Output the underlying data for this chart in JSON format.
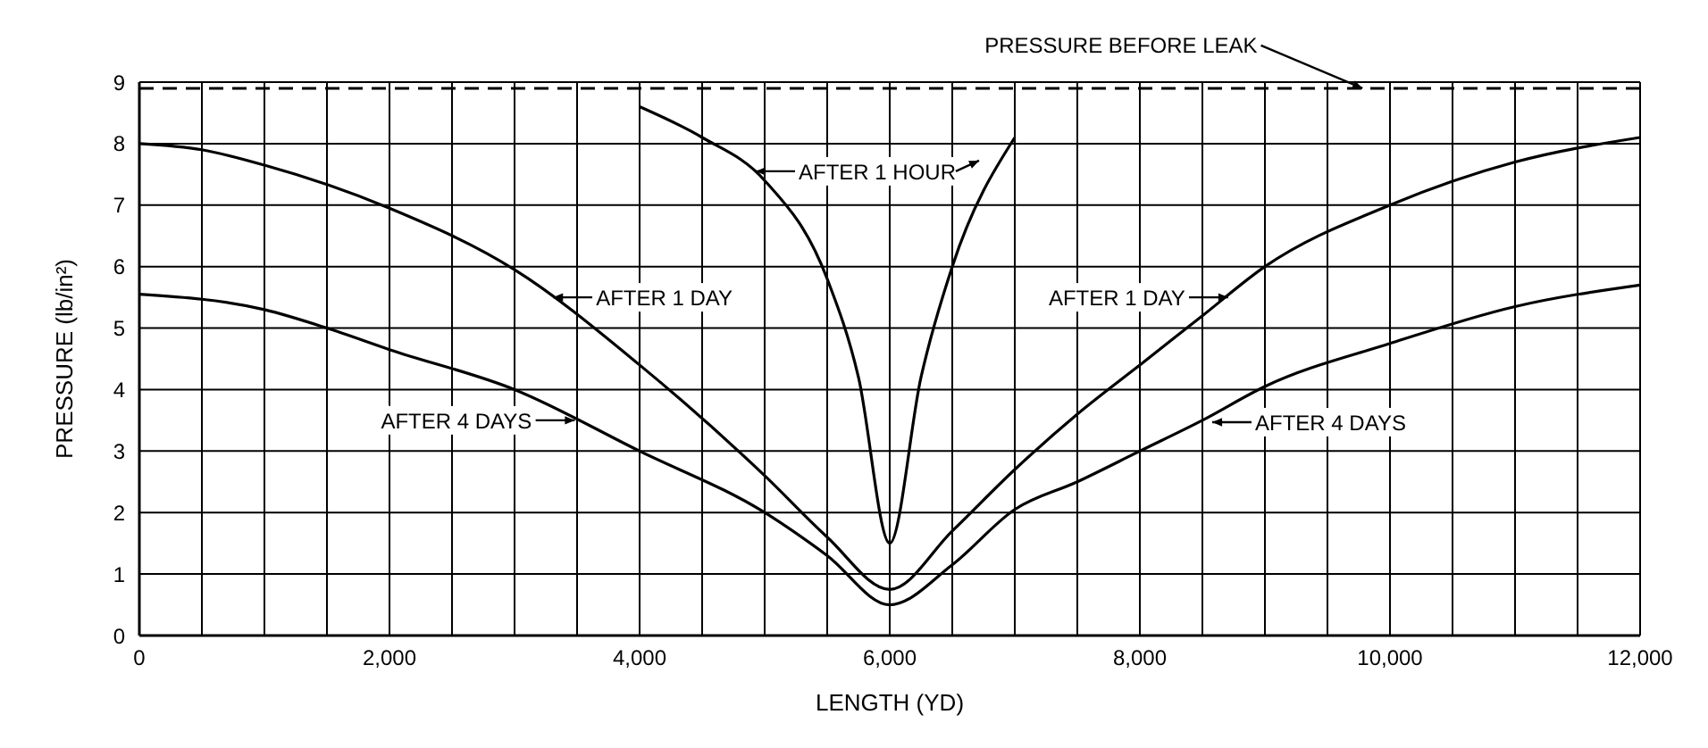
{
  "chart_data": {
    "type": "line",
    "xlabel": "LENGTH (YD)",
    "ylabel": "PRESSURE (lb/in²)",
    "xlim": [
      0,
      12000
    ],
    "xticks": [
      {
        "value": 0,
        "label": "0"
      },
      {
        "value": 500,
        "label": null
      },
      {
        "value": 1000,
        "label": null
      },
      {
        "value": 1500,
        "label": null
      },
      {
        "value": 2000,
        "label": "2,000"
      },
      {
        "value": 2500,
        "label": null
      },
      {
        "value": 3000,
        "label": null
      },
      {
        "value": 3500,
        "label": null
      },
      {
        "value": 4000,
        "label": "4,000"
      },
      {
        "value": 4500,
        "label": null
      },
      {
        "value": 5000,
        "label": null
      },
      {
        "value": 5500,
        "label": null
      },
      {
        "value": 6000,
        "label": "6,000"
      },
      {
        "value": 6500,
        "label": null
      },
      {
        "value": 7000,
        "label": null
      },
      {
        "value": 7500,
        "label": null
      },
      {
        "value": 8000,
        "label": "8,000"
      },
      {
        "value": 8500,
        "label": null
      },
      {
        "value": 9000,
        "label": null
      },
      {
        "value": 9500,
        "label": null
      },
      {
        "value": 10000,
        "label": "10,000"
      },
      {
        "value": 10500,
        "label": null
      },
      {
        "value": 11000,
        "label": null
      },
      {
        "value": 11500,
        "label": null
      },
      {
        "value": 12000,
        "label": "12,000"
      }
    ],
    "ylim": [
      0,
      9
    ],
    "yticks": [
      0,
      1,
      2,
      3,
      4,
      5,
      6,
      7,
      8,
      9
    ],
    "grid": true,
    "marker": "none",
    "series": [
      {
        "color": "#000000",
        "x": [
          4000,
          4500,
          5000,
          5500,
          5750,
          6000,
          6250,
          6500,
          7000
        ],
        "values": [
          8.6,
          8.1,
          7.4,
          5.8,
          4.2,
          1.5,
          4.2,
          6.0,
          8.1
        ]
      },
      {
        "color": "#000000",
        "x": [
          0,
          500,
          1000,
          2000,
          3000,
          4000,
          5000,
          5500,
          6000,
          6500,
          7000,
          7500,
          8000,
          8500,
          9000,
          10000,
          11000,
          12000
        ],
        "values": [
          8.0,
          7.9,
          7.65,
          6.95,
          5.95,
          4.4,
          2.6,
          1.6,
          0.75,
          1.7,
          2.7,
          3.6,
          4.4,
          5.2,
          6.0,
          7.0,
          7.7,
          8.1
        ]
      },
      {
        "color": "#000000",
        "x": [
          0,
          1000,
          1500,
          2000,
          3000,
          4000,
          5000,
          5500,
          6000,
          6500,
          7000,
          7500,
          8000,
          8500,
          9000,
          10000,
          11000,
          12000
        ],
        "values": [
          5.55,
          5.3,
          5.0,
          4.65,
          4.0,
          3.0,
          2.0,
          1.3,
          0.5,
          1.15,
          2.05,
          2.5,
          3.0,
          3.5,
          4.05,
          4.75,
          5.35,
          5.7
        ]
      }
    ],
    "ref_lines": [
      {
        "axis": "y",
        "value": 8.9,
        "label": "PRESSURE BEFORE LEAK",
        "color": "#000000",
        "line_style": "dashed"
      }
    ],
    "annotations": [
      {
        "text": "AFTER 1 HOUR",
        "x": 4900,
        "y": 7.55
      },
      {
        "text": "AFTER 1 DAY",
        "x": 3280,
        "y": 5.5
      },
      {
        "text": "AFTER 4 DAYS",
        "x": 3510,
        "y": 3.5
      },
      {
        "text": "AFTER 1 DAY",
        "x": 8735,
        "y": 5.5
      },
      {
        "text": "AFTER 4 DAYS",
        "x": 8550,
        "y": 3.47
      }
    ]
  }
}
